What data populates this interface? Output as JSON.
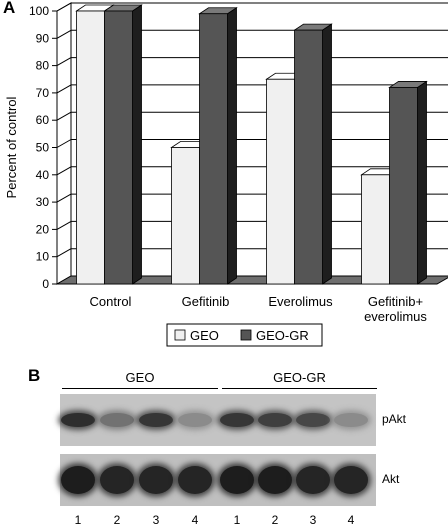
{
  "panel_a_label": "A",
  "panel_b_label": "B",
  "chart_data": {
    "type": "bar",
    "style": "3d",
    "ylabel": "Percent of control",
    "xlabel": "",
    "ylim": [
      0,
      100
    ],
    "yticks": [
      0,
      10,
      20,
      30,
      40,
      50,
      60,
      70,
      80,
      90,
      100
    ],
    "grid": true,
    "legend_position": "bottom",
    "categories": [
      "Control",
      "Gefitinib",
      "Everolimus",
      "Gefitinib+\neverolimus"
    ],
    "series": [
      {
        "name": "GEO",
        "color": "#f0f0f0",
        "values": [
          100,
          50,
          75,
          40
        ]
      },
      {
        "name": "GEO-GR",
        "color": "#555555",
        "values": [
          100,
          99,
          93,
          72
        ]
      }
    ]
  },
  "blot": {
    "group_labels": [
      "GEO",
      "GEO-GR"
    ],
    "rows": [
      {
        "label": "pAkt",
        "intensities": [
          0.85,
          0.45,
          0.8,
          0.3,
          0.8,
          0.75,
          0.7,
          0.3
        ]
      },
      {
        "label": "Akt",
        "intensities": [
          0.95,
          0.9,
          0.9,
          0.9,
          0.95,
          0.95,
          0.9,
          0.9
        ]
      }
    ],
    "lanes": [
      "1",
      "2",
      "3",
      "4",
      "1",
      "2",
      "3",
      "4"
    ]
  }
}
